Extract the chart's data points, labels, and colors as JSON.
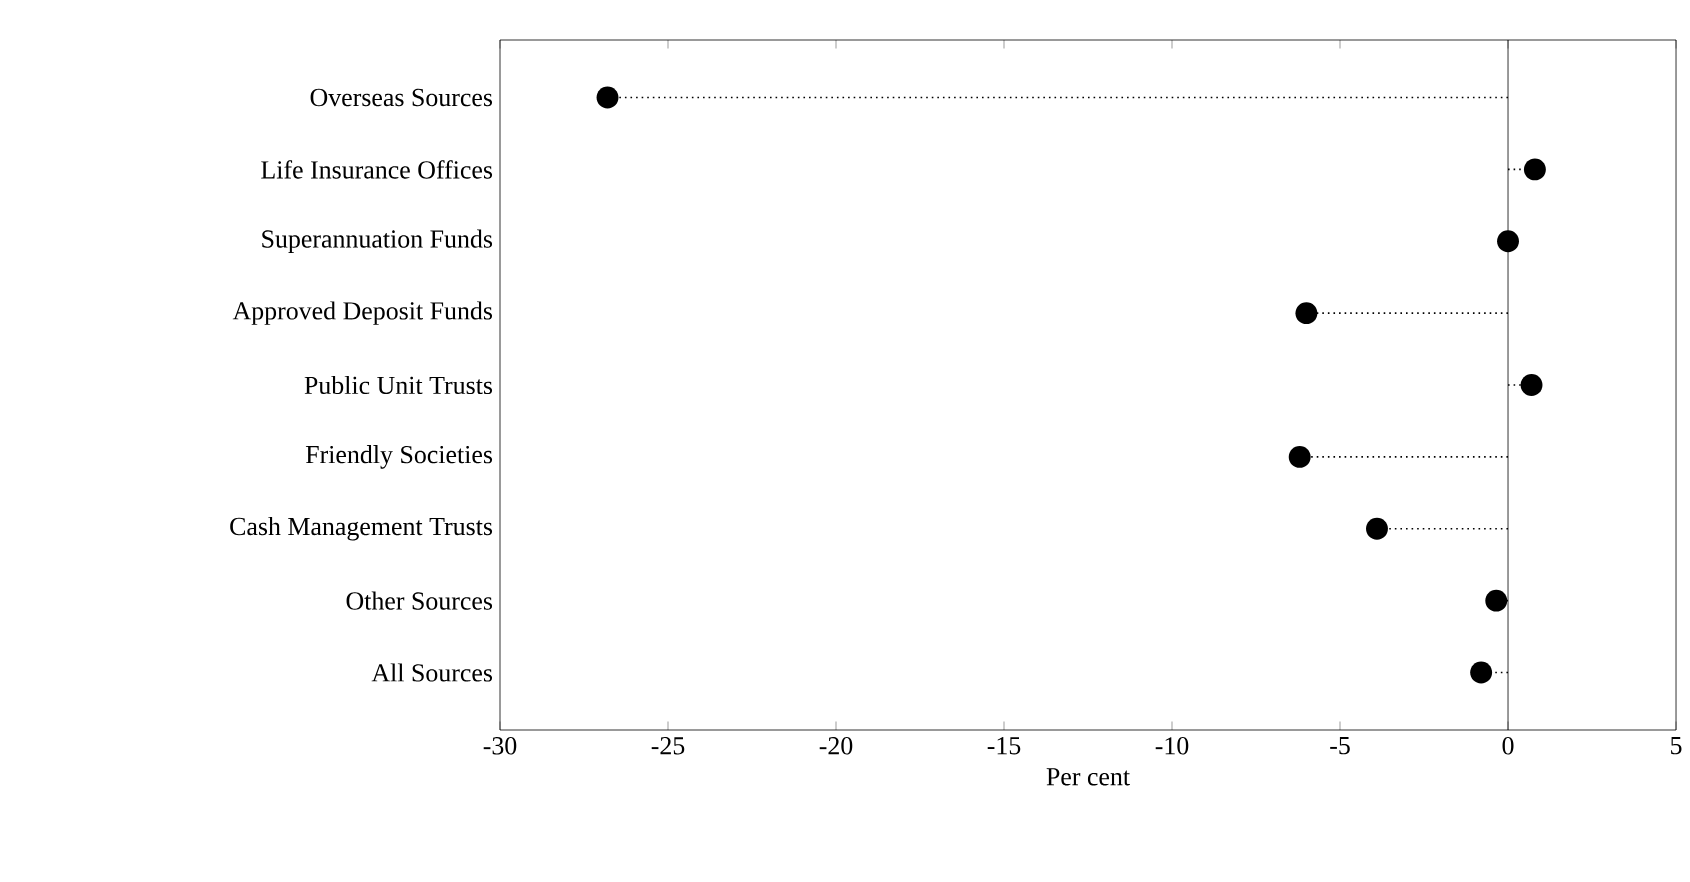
{
  "chart_data": {
    "type": "lollipop",
    "orientation": "horizontal",
    "categories": [
      "Overseas Sources",
      "Life Insurance Offices",
      "Superannuation Funds",
      "Approved Deposit Funds",
      "Public Unit Trusts",
      "Friendly Societies",
      "Cash Management Trusts",
      "Other Sources",
      "All Sources"
    ],
    "values": [
      -26.8,
      0.8,
      0.0,
      -6.0,
      0.7,
      -6.2,
      -3.9,
      -0.35,
      -0.8
    ],
    "color": "#000000",
    "xlim": [
      -30,
      5
    ],
    "xticks": [
      -30,
      -25,
      -20,
      -15,
      -10,
      -5,
      0,
      5
    ],
    "xlabel": "Per cent",
    "marker": "circle",
    "line_style": "dotted",
    "ref_lines": [
      {
        "axis": "x",
        "value": 0
      }
    ]
  }
}
